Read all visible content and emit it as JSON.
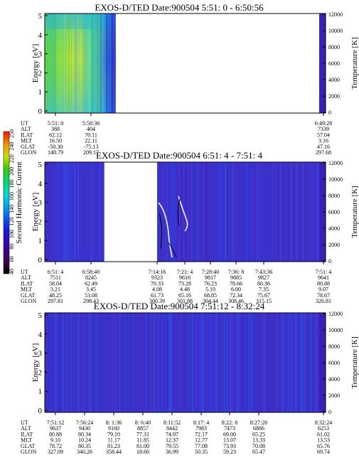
{
  "colorbar": {
    "label": "Second Harmonic Current",
    "ticks": [
      "40",
      "60",
      "80",
      "100",
      "120",
      "140",
      "160",
      "180",
      "200",
      "220",
      "240",
      "250"
    ]
  },
  "panels": [
    {
      "title": "EXOS-D/TED   Date:900504  5:51: 0 - 6:50:56",
      "y_label": "Energy [eV]",
      "y_ticks": [
        "0",
        "1",
        "2",
        "3",
        "4",
        "5"
      ],
      "temp_label": "Temperature [K]",
      "temp_ticks": [
        "0",
        "2000",
        "4000",
        "6000",
        "8000",
        "10000",
        "12000"
      ],
      "ephemeris_labels": [
        "UT",
        "ALT",
        "ILAT",
        "MLT",
        "GLAT",
        "GLON"
      ],
      "ephemeris_columns": [
        [
          "5:51: 0",
          "388",
          "62.12",
          "16.50",
          "-50.30",
          "148.79"
        ],
        [
          "5:58:36",
          "404",
          "70.11",
          "22.11",
          "-75.13",
          "209.17"
        ],
        [
          "6:49:28",
          "7339",
          "57.04",
          "3.16",
          "47.16",
          "297.68"
        ]
      ]
    },
    {
      "title": "EXOS-D/TED   Date:900504  6:51: 4 - 7:51: 4",
      "y_label": "Energy [eV]",
      "y_ticks": [
        "0",
        "1",
        "2",
        "3",
        "4",
        "5"
      ],
      "temp_label": "Temperature [K]",
      "temp_ticks": [
        "0",
        "2000",
        "4000",
        "6000",
        "8000",
        "10000",
        "12000"
      ],
      "ephemeris_labels": [
        "UT",
        "ALT",
        "ILAT",
        "MLT",
        "GLAT",
        "GLON"
      ],
      "ephemeris_columns": [
        [
          "6:51: 4",
          "7511",
          "58.04",
          "3.21",
          "48.25",
          "297.81"
        ],
        [
          "6:58:40",
          "8245",
          "62.49",
          "3.45",
          "53.08",
          "298.43"
        ],
        [
          "7:14:16",
          "9323",
          "70.33",
          "4.08",
          "61.73",
          "300.39"
        ],
        [
          "7:21: 4",
          "9616",
          "73.28",
          "4.48",
          "65.16",
          "301.88"
        ],
        [
          "7:28:40",
          "9817",
          "76.23",
          "5.10",
          "68.85",
          "304.44"
        ],
        [
          "7:36: 8",
          "9885",
          "78.66",
          "6.00",
          "72.34",
          "308.46"
        ],
        [
          "7:43:36",
          "9827",
          "80.36",
          "7.35",
          "75.67",
          "315.15"
        ],
        [
          "7:51: 4",
          "9641",
          "80.88",
          "9.07",
          "78.67",
          "326.81"
        ]
      ]
    },
    {
      "title": "EXOS-D/TED   Date:900504  7:51:12 - 8:32:24",
      "y_label": "Energy [eV]",
      "y_ticks": [
        "0",
        "1",
        "2",
        "3",
        "4",
        "5"
      ],
      "temp_label": "Temperature [K]",
      "temp_ticks": [
        "0",
        "2000",
        "4000",
        "6000",
        "8000",
        "10000",
        "12000"
      ],
      "ephemeris_labels": [
        "UT",
        "ALT",
        "ILAT",
        "MLT",
        "GLAT",
        "GLON"
      ],
      "ephemeris_columns": [
        [
          "7:51:12",
          "9637",
          "80.88",
          "9.10",
          "78.72",
          "327.09"
        ],
        [
          "7:56:24",
          "9430",
          "80.34",
          "10.24",
          "80.35",
          "340.26"
        ],
        [
          "8: 1:36",
          "9160",
          "79.10",
          "11.17",
          "81.23",
          "358.44"
        ],
        [
          "8: 6:40",
          "8857",
          "77.31",
          "11.85",
          "81.00",
          "18.66"
        ],
        [
          "8:11:52",
          "8442",
          "74.97",
          "12.37",
          "79.55",
          "36.99"
        ],
        [
          "8:17: 4",
          "7983",
          "72.17",
          "12.77",
          "77.08",
          "50.35"
        ],
        [
          "8:22: 8",
          "7473",
          "69.00",
          "13.07",
          "73.93",
          "59.23"
        ],
        [
          "8:27:20",
          "6886",
          "65.25",
          "13.33",
          "70.08",
          "65.47"
        ],
        [
          "8:32:24",
          "6253",
          "61.02",
          "13.53",
          "65.76",
          "69.74"
        ]
      ]
    }
  ],
  "chart_data": [
    {
      "type": "heatmap",
      "title": "EXOS-D/TED   Date:900504  5:51: 0 - 6:50:56",
      "ylabel": "Energy [eV]",
      "ylim": [
        0,
        5
      ],
      "y2label": "Temperature [K]",
      "y2lim": [
        0,
        12000
      ],
      "x_ticks": [
        "5:51: 0",
        "5:58:36",
        "6:49:28"
      ],
      "data_coverage": "5:51: 0 - 5:59:30",
      "colorscale_label": "Second Harmonic Current",
      "colorscale_range": [
        40,
        250
      ]
    },
    {
      "type": "heatmap",
      "title": "EXOS-D/TED   Date:900504  6:51: 4 - 7:51: 4",
      "ylabel": "Energy [eV]",
      "ylim": [
        0,
        5
      ],
      "y2label": "Temperature [K]",
      "y2lim": [
        0,
        12000
      ],
      "x_ticks": [
        "6:51: 4",
        "6:58:40",
        "7:14:16",
        "7:21: 4",
        "7:28:40",
        "7:36: 8",
        "7:43:36",
        "7:51: 4"
      ],
      "data_gap": "6:58:40 - 7:14:16",
      "colorscale_label": "Second Harmonic Current",
      "colorscale_range": [
        40,
        250
      ]
    },
    {
      "type": "heatmap",
      "title": "EXOS-D/TED   Date:900504  7:51:12 - 8:32:24",
      "ylabel": "Energy [eV]",
      "ylim": [
        0,
        5
      ],
      "y2label": "Temperature [K]",
      "y2lim": [
        0,
        12000
      ],
      "x_ticks": [
        "7:51:12",
        "7:56:24",
        "8: 1:36",
        "8: 6:40",
        "8:11:52",
        "8:17: 4",
        "8:22: 8",
        "8:27:20",
        "8:32:24"
      ],
      "colorscale_label": "Second Harmonic Current",
      "colorscale_range": [
        40,
        250
      ]
    }
  ]
}
